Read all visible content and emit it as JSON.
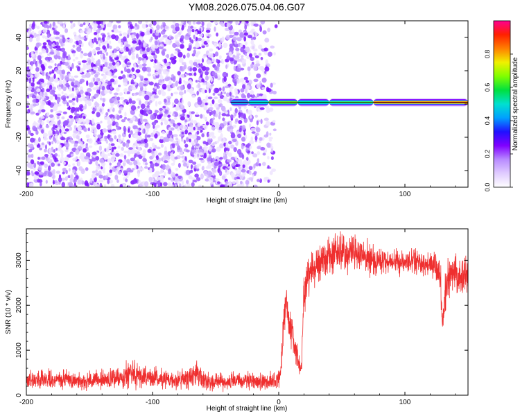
{
  "figure_title": "YM08.2026.075.04.06.G07",
  "colors": {
    "rainbow": [
      "#ffffff",
      "#e0ccff",
      "#b88aff",
      "#8000ff",
      "#2010ff",
      "#00a0ff",
      "#00e0d0",
      "#00e040",
      "#80ff00",
      "#f0f000",
      "#ff8000",
      "#ff2000",
      "#ff0090"
    ],
    "snr_line": "#ef2f2f"
  },
  "chart_data": [
    {
      "type": "heatmap",
      "xlabel": "Height of straight line (km)",
      "ylabel": "Frequency (Hz)",
      "xlim": [
        -200,
        150
      ],
      "ylim": [
        -50,
        50
      ],
      "x_ticks": [
        -200,
        -100,
        0,
        100
      ],
      "y_ticks": [
        -40,
        -20,
        0,
        20,
        40
      ],
      "x_tick_labels": [
        "-200",
        "-100",
        "0",
        "100"
      ],
      "y_tick_labels": [
        "-40",
        "-20",
        "0",
        "20",
        "40"
      ],
      "noise_region": {
        "x_range": [
          -200,
          -10
        ],
        "amplitude_range": [
          0.0,
          0.2
        ]
      },
      "signal_band": {
        "x_range": [
          -38,
          150
        ],
        "frequency_center": 1,
        "segments": [
          {
            "x0": -38,
            "x1": -24,
            "amplitude": 0.25
          },
          {
            "x0": -24,
            "x1": -8,
            "amplitude": 0.5
          },
          {
            "x0": -8,
            "x1": 15,
            "amplitude": 0.75
          },
          {
            "x0": 15,
            "x1": 40,
            "amplitude": 0.6
          },
          {
            "x0": 40,
            "x1": 75,
            "amplitude": 0.7
          },
          {
            "x0": 75,
            "x1": 150,
            "amplitude": 0.95
          }
        ]
      },
      "colorbar": {
        "label": "Normalized spectral amplitude",
        "range": [
          0.0,
          1.0
        ],
        "ticks": [
          0.0,
          0.2,
          0.4,
          0.6,
          0.8
        ],
        "tick_labels": [
          "0.0",
          "0.2",
          "0.4",
          "0.6",
          "0.8"
        ]
      }
    },
    {
      "type": "line",
      "xlabel": "Height of straight line (km)",
      "ylabel": "SNR (10 * v/v)",
      "xlim": [
        -200,
        150
      ],
      "ylim": [
        0,
        3700
      ],
      "x_ticks": [
        -200,
        -100,
        0,
        100
      ],
      "y_ticks": [
        0,
        1000,
        2000,
        3000
      ],
      "x_tick_labels": [
        "-200",
        "-100",
        "0",
        "100"
      ],
      "y_tick_labels": [
        "0",
        "1000",
        "2000",
        "3000"
      ],
      "series": [
        {
          "x": [
            -200,
            -190,
            -180,
            -170,
            -160,
            -150,
            -140,
            -130,
            -120,
            -115,
            -110,
            -100,
            -90,
            -80,
            -70,
            -65,
            -60,
            -50,
            -40,
            -30,
            -20,
            -10,
            -5,
            0,
            2,
            4,
            6,
            8,
            10,
            12,
            14,
            16,
            18,
            20,
            25,
            30,
            35,
            40,
            45,
            50,
            55,
            60,
            65,
            70,
            75,
            80,
            85,
            90,
            95,
            100,
            105,
            110,
            115,
            120,
            125,
            128,
            130,
            132,
            135,
            140,
            145,
            150
          ],
          "y": [
            350,
            340,
            330,
            350,
            330,
            320,
            340,
            350,
            480,
            550,
            420,
            380,
            350,
            330,
            400,
            500,
            330,
            310,
            300,
            310,
            300,
            310,
            320,
            330,
            700,
            1600,
            2300,
            1600,
            1400,
            1200,
            900,
            700,
            600,
            2300,
            2800,
            2900,
            3000,
            3100,
            3150,
            3200,
            3150,
            3200,
            3100,
            3050,
            3000,
            2950,
            3000,
            2950,
            2950,
            2950,
            2950,
            3000,
            2900,
            2900,
            2800,
            2600,
            1500,
            2300,
            2700,
            2750,
            2600,
            2700
          ],
          "noise_amplitude": [
            150,
            150,
            150,
            150,
            150,
            150,
            150,
            160,
            220,
            250,
            200,
            160,
            150,
            150,
            170,
            200,
            150,
            140,
            140,
            140,
            140,
            140,
            150,
            160,
            200,
            300,
            350,
            300,
            250,
            220,
            200,
            150,
            150,
            350,
            300,
            300,
            300,
            300,
            300,
            300,
            300,
            300,
            250,
            250,
            250,
            200,
            200,
            200,
            200,
            200,
            200,
            200,
            200,
            200,
            250,
            300,
            300,
            300,
            300,
            300,
            300,
            300
          ]
        }
      ]
    }
  ]
}
